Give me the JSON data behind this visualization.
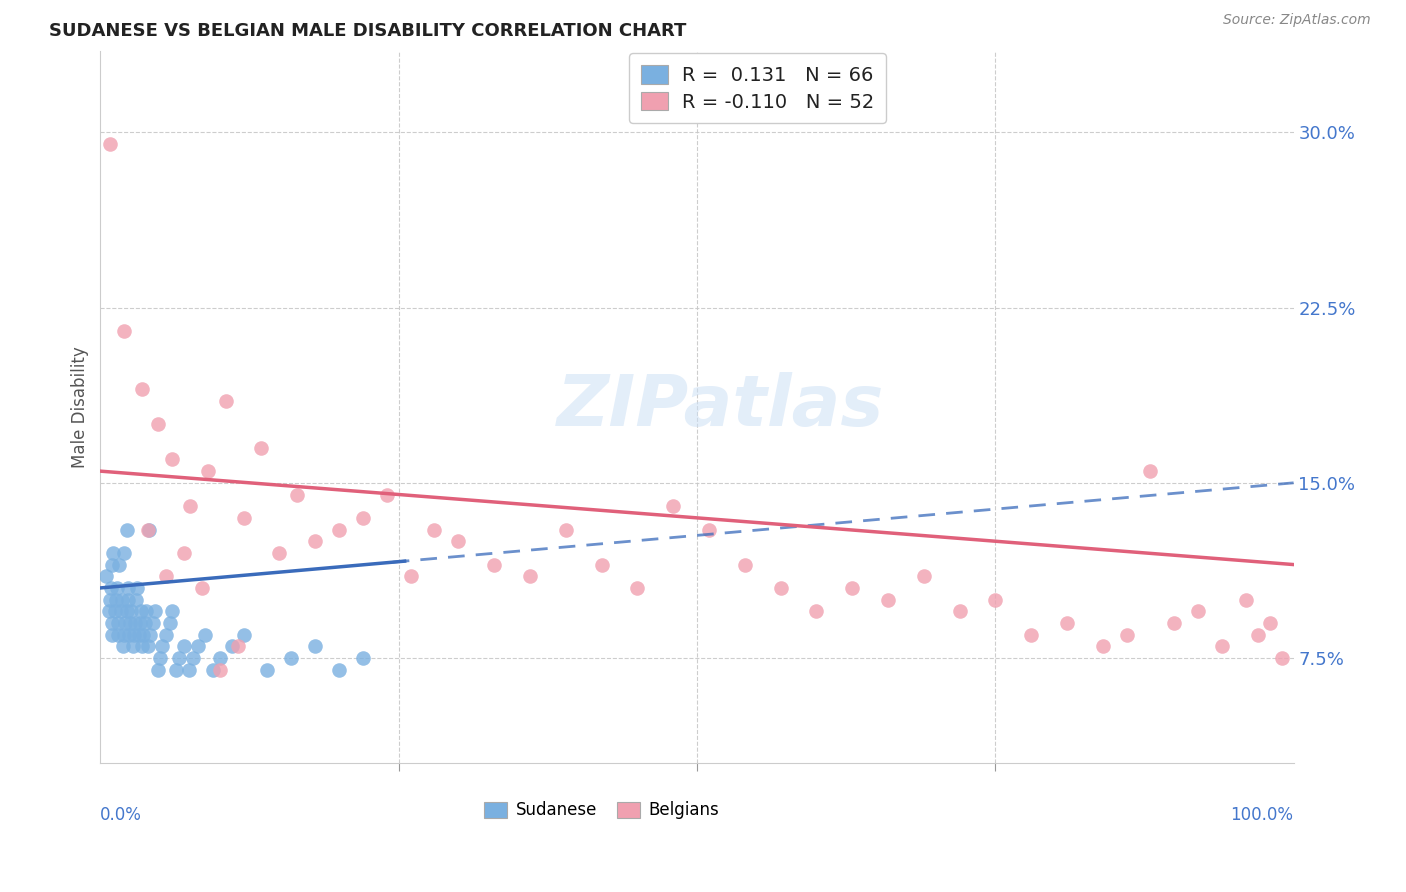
{
  "title": "SUDANESE VS BELGIAN MALE DISABILITY CORRELATION CHART",
  "source": "Source: ZipAtlas.com",
  "ylabel": "Male Disability",
  "yticks": [
    0.075,
    0.15,
    0.225,
    0.3
  ],
  "ytick_labels": [
    "7.5%",
    "15.0%",
    "22.5%",
    "30.0%"
  ],
  "xlim": [
    0.0,
    1.0
  ],
  "ylim": [
    0.03,
    0.335
  ],
  "sudanese_color": "#7ab0e0",
  "belgian_color": "#f0a0b0",
  "sudanese_line_color": "#3a6bbb",
  "belgian_line_color": "#e0607a",
  "background_color": "#ffffff",
  "grid_color": "#c8c8c8",
  "sudanese_R": 0.131,
  "belgian_R": -0.11,
  "sudanese_N": 66,
  "belgian_N": 52,
  "sudanese_x": [
    0.005,
    0.007,
    0.008,
    0.009,
    0.01,
    0.01,
    0.01,
    0.011,
    0.012,
    0.013,
    0.014,
    0.015,
    0.015,
    0.016,
    0.017,
    0.018,
    0.019,
    0.02,
    0.02,
    0.021,
    0.022,
    0.022,
    0.023,
    0.023,
    0.024,
    0.025,
    0.026,
    0.027,
    0.028,
    0.029,
    0.03,
    0.031,
    0.032,
    0.033,
    0.034,
    0.035,
    0.036,
    0.037,
    0.038,
    0.04,
    0.041,
    0.042,
    0.044,
    0.046,
    0.048,
    0.05,
    0.052,
    0.055,
    0.058,
    0.06,
    0.063,
    0.066,
    0.07,
    0.074,
    0.078,
    0.082,
    0.088,
    0.094,
    0.1,
    0.11,
    0.12,
    0.14,
    0.16,
    0.18,
    0.2,
    0.22
  ],
  "sudanese_y": [
    0.11,
    0.095,
    0.1,
    0.105,
    0.085,
    0.09,
    0.115,
    0.12,
    0.095,
    0.1,
    0.105,
    0.085,
    0.09,
    0.115,
    0.095,
    0.1,
    0.08,
    0.085,
    0.12,
    0.09,
    0.095,
    0.13,
    0.1,
    0.105,
    0.085,
    0.09,
    0.095,
    0.08,
    0.085,
    0.09,
    0.1,
    0.105,
    0.085,
    0.09,
    0.095,
    0.08,
    0.085,
    0.09,
    0.095,
    0.08,
    0.13,
    0.085,
    0.09,
    0.095,
    0.07,
    0.075,
    0.08,
    0.085,
    0.09,
    0.095,
    0.07,
    0.075,
    0.08,
    0.07,
    0.075,
    0.08,
    0.085,
    0.07,
    0.075,
    0.08,
    0.085,
    0.07,
    0.075,
    0.08,
    0.07,
    0.075
  ],
  "belgian_x": [
    0.008,
    0.02,
    0.035,
    0.048,
    0.06,
    0.075,
    0.09,
    0.105,
    0.12,
    0.135,
    0.15,
    0.165,
    0.18,
    0.2,
    0.22,
    0.24,
    0.26,
    0.28,
    0.3,
    0.33,
    0.36,
    0.39,
    0.42,
    0.45,
    0.48,
    0.51,
    0.54,
    0.57,
    0.6,
    0.63,
    0.66,
    0.69,
    0.72,
    0.75,
    0.78,
    0.81,
    0.84,
    0.86,
    0.88,
    0.9,
    0.92,
    0.94,
    0.96,
    0.97,
    0.98,
    0.99,
    0.04,
    0.055,
    0.07,
    0.085,
    0.1,
    0.115
  ],
  "belgian_y": [
    0.295,
    0.215,
    0.19,
    0.175,
    0.16,
    0.14,
    0.155,
    0.185,
    0.135,
    0.165,
    0.12,
    0.145,
    0.125,
    0.13,
    0.135,
    0.145,
    0.11,
    0.13,
    0.125,
    0.115,
    0.11,
    0.13,
    0.115,
    0.105,
    0.14,
    0.13,
    0.115,
    0.105,
    0.095,
    0.105,
    0.1,
    0.11,
    0.095,
    0.1,
    0.085,
    0.09,
    0.08,
    0.085,
    0.155,
    0.09,
    0.095,
    0.08,
    0.1,
    0.085,
    0.09,
    0.075,
    0.13,
    0.11,
    0.12,
    0.105,
    0.07,
    0.08
  ]
}
